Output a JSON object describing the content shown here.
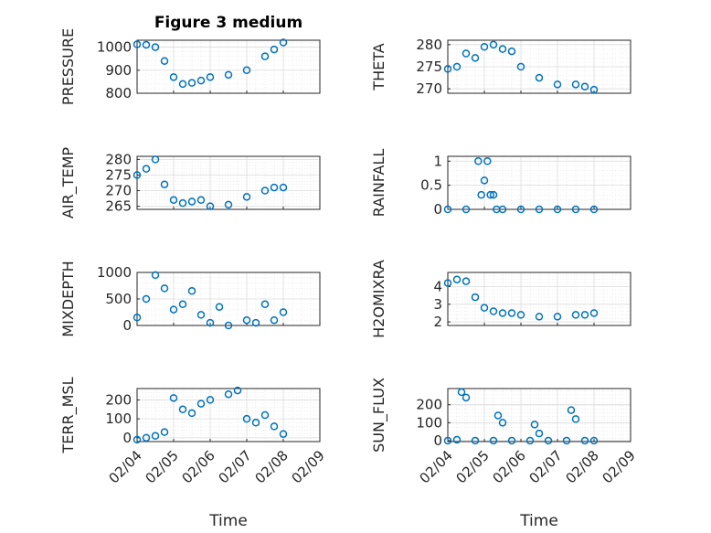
{
  "title": "Figure 3 medium",
  "xlabel": "Time",
  "x_ticks": [
    "02/04",
    "02/05",
    "02/06",
    "02/07",
    "02/08",
    "02/09"
  ],
  "marker_color": "#0072BD",
  "chart_data": [
    {
      "type": "scatter",
      "ylabel": "PRESSURE",
      "ylim": [
        800,
        1030
      ],
      "yticks": [
        "800",
        "900",
        "1000"
      ],
      "ytick_values": [
        800,
        900,
        1000
      ],
      "grid": true,
      "x": [
        "02/04 00:00",
        "02/04 06:00",
        "02/04 12:00",
        "02/04 18:00",
        "02/05 00:00",
        "02/05 06:00",
        "02/05 12:00",
        "02/05 18:00",
        "02/06 00:00",
        "02/06 12:00",
        "02/07 00:00",
        "02/07 12:00",
        "02/07 18:00",
        "02/08 00:00"
      ],
      "y": [
        1012,
        1010,
        1000,
        940,
        870,
        840,
        845,
        855,
        870,
        880,
        900,
        960,
        990,
        1020
      ]
    },
    {
      "type": "scatter",
      "ylabel": "THETA",
      "ylim": [
        269,
        281
      ],
      "yticks": [
        "270",
        "275",
        "280"
      ],
      "ytick_values": [
        270,
        275,
        280
      ],
      "grid": true,
      "x": [
        "02/04 00:00",
        "02/04 06:00",
        "02/04 12:00",
        "02/04 18:00",
        "02/05 00:00",
        "02/05 06:00",
        "02/05 12:00",
        "02/05 18:00",
        "02/06 00:00",
        "02/06 12:00",
        "02/07 00:00",
        "02/07 12:00",
        "02/07 18:00",
        "02/08 00:00"
      ],
      "y": [
        274.5,
        275,
        278,
        277,
        279.5,
        280,
        279,
        278.5,
        275,
        272.5,
        271,
        271,
        270.5,
        269.8
      ]
    },
    {
      "type": "scatter",
      "ylabel": "AIR_TEMP",
      "ylim": [
        264,
        281
      ],
      "yticks": [
        "265",
        "270",
        "275",
        "280"
      ],
      "ytick_values": [
        265,
        270,
        275,
        280
      ],
      "grid": true,
      "x": [
        "02/04 00:00",
        "02/04 06:00",
        "02/04 12:00",
        "02/04 18:00",
        "02/05 00:00",
        "02/05 06:00",
        "02/05 12:00",
        "02/05 18:00",
        "02/06 00:00",
        "02/06 12:00",
        "02/07 00:00",
        "02/07 12:00",
        "02/07 18:00",
        "02/08 00:00"
      ],
      "y": [
        275,
        277,
        280,
        272,
        267,
        266,
        266.5,
        267,
        265,
        265.5,
        268,
        270,
        271,
        271
      ]
    },
    {
      "type": "scatter",
      "ylabel": "RAINFALL",
      "ylim": [
        0,
        1.1
      ],
      "yticks": [
        "0",
        "0.5",
        "1"
      ],
      "ytick_values": [
        0,
        0.5,
        1
      ],
      "grid": true,
      "x": [
        "02/04 00:00",
        "02/04 12:00",
        "02/04 20:00",
        "02/04 22:00",
        "02/05 00:00",
        "02/05 02:00",
        "02/05 04:00",
        "02/05 06:00",
        "02/05 08:00",
        "02/05 12:00",
        "02/06 00:00",
        "02/06 12:00",
        "02/07 00:00",
        "02/07 12:00",
        "02/08 00:00"
      ],
      "y": [
        0,
        0,
        1,
        0.3,
        0.6,
        1,
        0.3,
        0.3,
        0,
        0,
        0,
        0,
        0,
        0,
        0
      ]
    },
    {
      "type": "scatter",
      "ylabel": "MIXDEPTH",
      "ylim": [
        0,
        1000
      ],
      "yticks": [
        "0",
        "500",
        "1000"
      ],
      "ytick_values": [
        0,
        500,
        1000
      ],
      "grid": true,
      "x": [
        "02/04 00:00",
        "02/04 06:00",
        "02/04 12:00",
        "02/04 18:00",
        "02/05 00:00",
        "02/05 06:00",
        "02/05 12:00",
        "02/05 18:00",
        "02/06 00:00",
        "02/06 06:00",
        "02/06 12:00",
        "02/07 00:00",
        "02/07 06:00",
        "02/07 12:00",
        "02/07 18:00",
        "02/08 00:00"
      ],
      "y": [
        150,
        500,
        950,
        700,
        300,
        400,
        650,
        200,
        50,
        350,
        0,
        100,
        50,
        400,
        100,
        250
      ]
    },
    {
      "type": "scatter",
      "ylabel": "H2OMIXRA",
      "ylim": [
        1.8,
        4.8
      ],
      "yticks": [
        "2",
        "3",
        "4"
      ],
      "ytick_values": [
        2,
        3,
        4
      ],
      "grid": true,
      "x": [
        "02/04 00:00",
        "02/04 06:00",
        "02/04 12:00",
        "02/04 18:00",
        "02/05 00:00",
        "02/05 06:00",
        "02/05 12:00",
        "02/05 18:00",
        "02/06 00:00",
        "02/06 12:00",
        "02/07 00:00",
        "02/07 12:00",
        "02/07 18:00",
        "02/08 00:00"
      ],
      "y": [
        4.2,
        4.4,
        4.3,
        3.4,
        2.8,
        2.6,
        2.5,
        2.5,
        2.4,
        2.3,
        2.3,
        2.4,
        2.4,
        2.5
      ]
    },
    {
      "type": "scatter",
      "ylabel": "TERR_MSL",
      "ylim": [
        -20,
        260
      ],
      "yticks": [
        "0",
        "100",
        "200"
      ],
      "ytick_values": [
        0,
        100,
        200
      ],
      "grid": true,
      "x": [
        "02/04 00:00",
        "02/04 06:00",
        "02/04 12:00",
        "02/04 18:00",
        "02/05 00:00",
        "02/05 06:00",
        "02/05 12:00",
        "02/05 18:00",
        "02/06 00:00",
        "02/06 12:00",
        "02/06 18:00",
        "02/07 00:00",
        "02/07 06:00",
        "02/07 12:00",
        "02/07 18:00",
        "02/08 00:00"
      ],
      "y": [
        -10,
        0,
        10,
        30,
        210,
        150,
        130,
        180,
        200,
        230,
        250,
        100,
        80,
        120,
        60,
        20
      ]
    },
    {
      "type": "scatter",
      "ylabel": "SUN_FLUX",
      "ylim": [
        -5,
        290
      ],
      "yticks": [
        "0",
        "100",
        "200"
      ],
      "ytick_values": [
        0,
        100,
        200
      ],
      "grid": true,
      "x": [
        "02/04 00:00",
        "02/04 06:00",
        "02/04 09:00",
        "02/04 12:00",
        "02/04 18:00",
        "02/05 06:00",
        "02/05 09:00",
        "02/05 12:00",
        "02/05 18:00",
        "02/06 06:00",
        "02/06 09:00",
        "02/06 12:00",
        "02/06 18:00",
        "02/07 06:00",
        "02/07 09:00",
        "02/07 12:00",
        "02/07 18:00",
        "02/08 00:00"
      ],
      "y": [
        0,
        5,
        270,
        240,
        0,
        0,
        140,
        100,
        0,
        0,
        90,
        40,
        0,
        0,
        170,
        120,
        0,
        0
      ]
    }
  ]
}
